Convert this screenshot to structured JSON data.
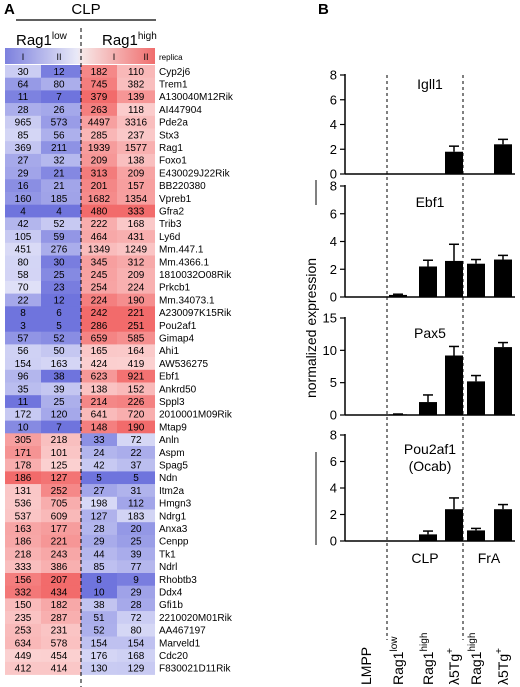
{
  "panel_a": {
    "label": "A",
    "group_title": "CLP",
    "groups": [
      {
        "base": "Rag1",
        "sup": "low"
      },
      {
        "base": "Rag1",
        "sup": "high"
      }
    ],
    "replicate_labels": [
      "I",
      "II",
      "I",
      "II"
    ],
    "replicate_header": "replica",
    "colors": {
      "high": "#f26b6b",
      "mid": "#ffffff",
      "low": "#6f74dd"
    },
    "rows": [
      {
        "gene": "Cyp2j6",
        "values": [
          30,
          12,
          182,
          110
        ]
      },
      {
        "gene": "Trem1",
        "values": [
          64,
          80,
          745,
          382
        ]
      },
      {
        "gene": "A130040M12Rik",
        "values": [
          11,
          7,
          379,
          139
        ]
      },
      {
        "gene": "AI447904",
        "values": [
          28,
          26,
          263,
          118
        ]
      },
      {
        "gene": "Pde2a",
        "values": [
          965,
          573,
          4497,
          3316
        ]
      },
      {
        "gene": "Stx3",
        "values": [
          85,
          56,
          285,
          237
        ]
      },
      {
        "gene": "Rag1",
        "values": [
          369,
          211,
          1939,
          1577
        ]
      },
      {
        "gene": "Foxo1",
        "values": [
          27,
          32,
          209,
          138
        ]
      },
      {
        "gene": "E430029J22Rik",
        "values": [
          29,
          21,
          313,
          209
        ]
      },
      {
        "gene": "BB220380",
        "values": [
          16,
          21,
          201,
          157
        ]
      },
      {
        "gene": "Vpreb1",
        "values": [
          160,
          185,
          1682,
          1354
        ]
      },
      {
        "gene": "Gfra2",
        "values": [
          4,
          4,
          480,
          333
        ]
      },
      {
        "gene": "Trib3",
        "values": [
          42,
          52,
          222,
          168
        ]
      },
      {
        "gene": "Ly6d",
        "values": [
          105,
          59,
          464,
          431
        ]
      },
      {
        "gene": "Mm.447.1",
        "values": [
          451,
          276,
          1349,
          1249
        ]
      },
      {
        "gene": "Mm.4366.1",
        "values": [
          80,
          30,
          345,
          312
        ]
      },
      {
        "gene": "1810032O08Rik",
        "values": [
          58,
          25,
          245,
          209
        ]
      },
      {
        "gene": "Prkcb1",
        "values": [
          70,
          23,
          254,
          224
        ]
      },
      {
        "gene": "Mm.34073.1",
        "values": [
          22,
          12,
          224,
          190
        ]
      },
      {
        "gene": "A230097K15Rik",
        "values": [
          8,
          6,
          242,
          221
        ]
      },
      {
        "gene": "Pou2af1",
        "values": [
          3,
          5,
          286,
          251
        ]
      },
      {
        "gene": "Gimap4",
        "values": [
          57,
          52,
          659,
          585
        ]
      },
      {
        "gene": "Ahi1",
        "values": [
          56,
          50,
          165,
          164
        ]
      },
      {
        "gene": "AW536275",
        "values": [
          154,
          163,
          424,
          419
        ]
      },
      {
        "gene": "Ebf1",
        "values": [
          96,
          38,
          623,
          921
        ]
      },
      {
        "gene": "Ankrd50",
        "values": [
          35,
          39,
          138,
          152
        ]
      },
      {
        "gene": "Sppl3",
        "values": [
          11,
          25,
          214,
          226
        ]
      },
      {
        "gene": "2010001M09Rik",
        "values": [
          172,
          120,
          641,
          720
        ]
      },
      {
        "gene": "Mtap9",
        "values": [
          10,
          7,
          148,
          190
        ]
      },
      {
        "gene": "Anln",
        "values": [
          305,
          218,
          33,
          72
        ]
      },
      {
        "gene": "Aspm",
        "values": [
          171,
          101,
          24,
          22
        ]
      },
      {
        "gene": "Spag5",
        "values": [
          178,
          125,
          42,
          37
        ]
      },
      {
        "gene": "Ndn",
        "values": [
          186,
          127,
          5,
          5
        ]
      },
      {
        "gene": "Itm2a",
        "values": [
          131,
          252,
          27,
          31
        ]
      },
      {
        "gene": "Hmgn3",
        "values": [
          536,
          705,
          198,
          112
        ]
      },
      {
        "gene": "Ndrg1",
        "values": [
          537,
          609,
          127,
          183
        ]
      },
      {
        "gene": "Anxa3",
        "values": [
          163,
          177,
          28,
          20
        ]
      },
      {
        "gene": "Cenpp",
        "values": [
          186,
          221,
          29,
          25
        ]
      },
      {
        "gene": "Tk1",
        "values": [
          218,
          243,
          44,
          39
        ]
      },
      {
        "gene": "Ndrl",
        "values": [
          333,
          386,
          85,
          77
        ]
      },
      {
        "gene": "Rhobtb3",
        "values": [
          156,
          207,
          8,
          9
        ]
      },
      {
        "gene": "Ddx4",
        "values": [
          332,
          434,
          10,
          29
        ]
      },
      {
        "gene": "Gfi1b",
        "values": [
          150,
          182,
          38,
          28
        ]
      },
      {
        "gene": "2210020M01Rik",
        "values": [
          235,
          287,
          51,
          72
        ]
      },
      {
        "gene": "AA467197",
        "values": [
          253,
          231,
          52,
          80
        ]
      },
      {
        "gene": "Marveld1",
        "values": [
          634,
          578,
          154,
          154
        ]
      },
      {
        "gene": "Cdc20",
        "values": [
          449,
          454,
          176,
          168
        ]
      },
      {
        "gene": "F830021D11Rik",
        "values": [
          412,
          414,
          130,
          129
        ]
      }
    ]
  },
  "panel_b": {
    "label": "B",
    "ylabel": "normalized expression",
    "bar_color": "#000000",
    "categories": [
      {
        "base": "LMPP",
        "sup": ""
      },
      {
        "base": "Rag1",
        "sup": "low"
      },
      {
        "base": "Rag1",
        "sup": "high"
      },
      {
        "base": "λ5Tg",
        "sup": "+"
      },
      {
        "base": "Rag1",
        "sup": "high"
      },
      {
        "base": "λ5Tg",
        "sup": "+"
      }
    ],
    "group_labels": [
      "CLP",
      "FrA"
    ]
  },
  "chart_data": [
    {
      "type": "bar",
      "title": "Igll1",
      "categories": [
        "LMPP",
        "Rag1low",
        "Rag1high",
        "λ5Tg+",
        "Rag1high",
        "λ5Tg+"
      ],
      "values": [
        0,
        0,
        0,
        1.8,
        0,
        2.4
      ],
      "errors": [
        0,
        0,
        0,
        0.45,
        0,
        0.4
      ],
      "ylim": [
        0,
        8
      ],
      "yticks": [
        0,
        2,
        4,
        6,
        8
      ]
    },
    {
      "type": "bar",
      "title": "Ebf1",
      "categories": [
        "LMPP",
        "Rag1low",
        "Rag1high",
        "λ5Tg+",
        "Rag1high",
        "λ5Tg+"
      ],
      "values": [
        0,
        0.15,
        2.2,
        2.6,
        2.4,
        2.7
      ],
      "errors": [
        0,
        0.05,
        0.45,
        1.2,
        0.3,
        0.3
      ],
      "ylim": [
        0,
        8
      ],
      "yticks": [
        0,
        2,
        4,
        6,
        8
      ]
    },
    {
      "type": "bar",
      "title": "Pax5",
      "categories": [
        "LMPP",
        "Rag1low",
        "Rag1high",
        "λ5Tg+",
        "Rag1high",
        "λ5Tg+"
      ],
      "values": [
        0,
        0.1,
        2.0,
        9.2,
        5.2,
        10.5
      ],
      "errors": [
        0,
        0.05,
        1.1,
        1.4,
        0.9,
        0.7
      ],
      "ylim": [
        0,
        15
      ],
      "yticks": [
        0,
        5,
        10,
        15
      ]
    },
    {
      "type": "bar",
      "title": "Pou2af1\n(Ocab)",
      "categories": [
        "LMPP",
        "Rag1low",
        "Rag1high",
        "λ5Tg+",
        "Rag1high",
        "λ5Tg+"
      ],
      "values": [
        0,
        0,
        0.5,
        2.4,
        0.8,
        2.4
      ],
      "errors": [
        0,
        0,
        0.25,
        0.85,
        0.15,
        0.35
      ],
      "ylim": [
        0,
        8
      ],
      "yticks": [
        0,
        2,
        4,
        6,
        8
      ]
    }
  ]
}
